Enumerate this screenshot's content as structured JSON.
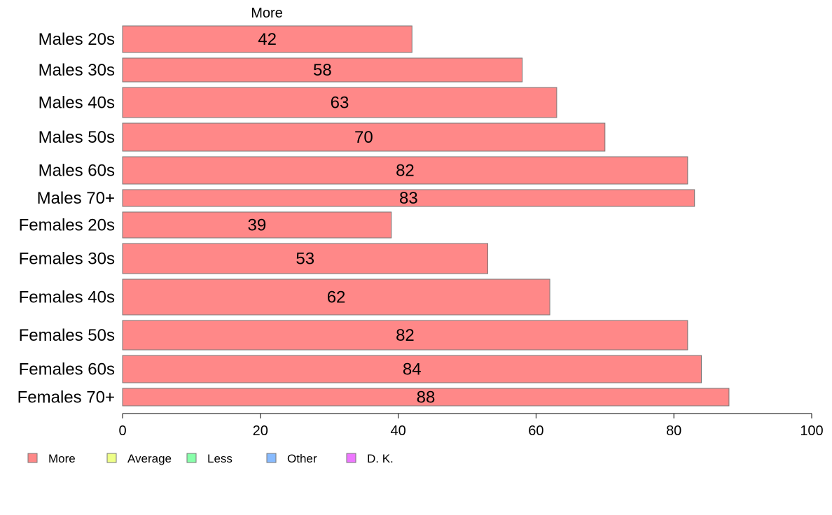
{
  "chart_data": {
    "type": "bar",
    "orientation": "horizontal",
    "series_title": "More",
    "categories": [
      "Males 20s",
      "Males 30s",
      "Males 40s",
      "Males 50s",
      "Males 60s",
      "Males 70+",
      "Females 20s",
      "Females 30s",
      "Females 40s",
      "Females 50s",
      "Females 60s",
      "Females 70+"
    ],
    "series": [
      {
        "name": "More",
        "values": [
          42,
          58,
          63,
          70,
          82,
          83,
          39,
          53,
          62,
          82,
          84,
          88
        ],
        "color": "#ff8888"
      }
    ],
    "xlim": [
      0,
      100
    ],
    "xticks": [
      0,
      20,
      40,
      60,
      80,
      100
    ],
    "legend": {
      "placement": "bottom-left",
      "items": [
        {
          "label": "More",
          "color": "#ff8888"
        },
        {
          "label": "Average",
          "color": "#eeff88"
        },
        {
          "label": "Less",
          "color": "#88ffaa"
        },
        {
          "label": "Other",
          "color": "#88bbff"
        },
        {
          "label": "D. K.",
          "color": "#ee77ff"
        }
      ]
    },
    "grid": false
  }
}
